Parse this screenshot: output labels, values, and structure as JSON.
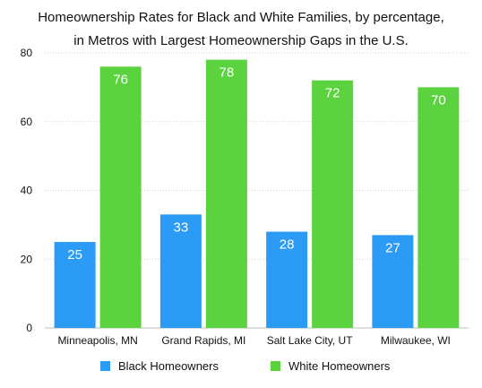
{
  "chart_data": {
    "type": "bar",
    "title": "Homeownership Rates for Black and White Families, by percentage,",
    "subtitle": "in Metros with Largest Homeownership Gaps in the U.S.",
    "categories": [
      "Minneapolis, MN",
      "Grand Rapids, MI",
      "Salt Lake City, UT",
      "Milwaukee, WI"
    ],
    "series": [
      {
        "name": "Black Homeowners",
        "color": "#2b9bf5",
        "values": [
          25,
          33,
          28,
          27
        ]
      },
      {
        "name": "White Homeowners",
        "color": "#5bd33f",
        "values": [
          76,
          78,
          72,
          70
        ]
      }
    ],
    "ylim": [
      0,
      80
    ],
    "yticks": [
      "0",
      "20",
      "40",
      "60",
      "80"
    ],
    "grid": true,
    "legend_position": "bottom",
    "data_label_color": "#ffffff"
  }
}
